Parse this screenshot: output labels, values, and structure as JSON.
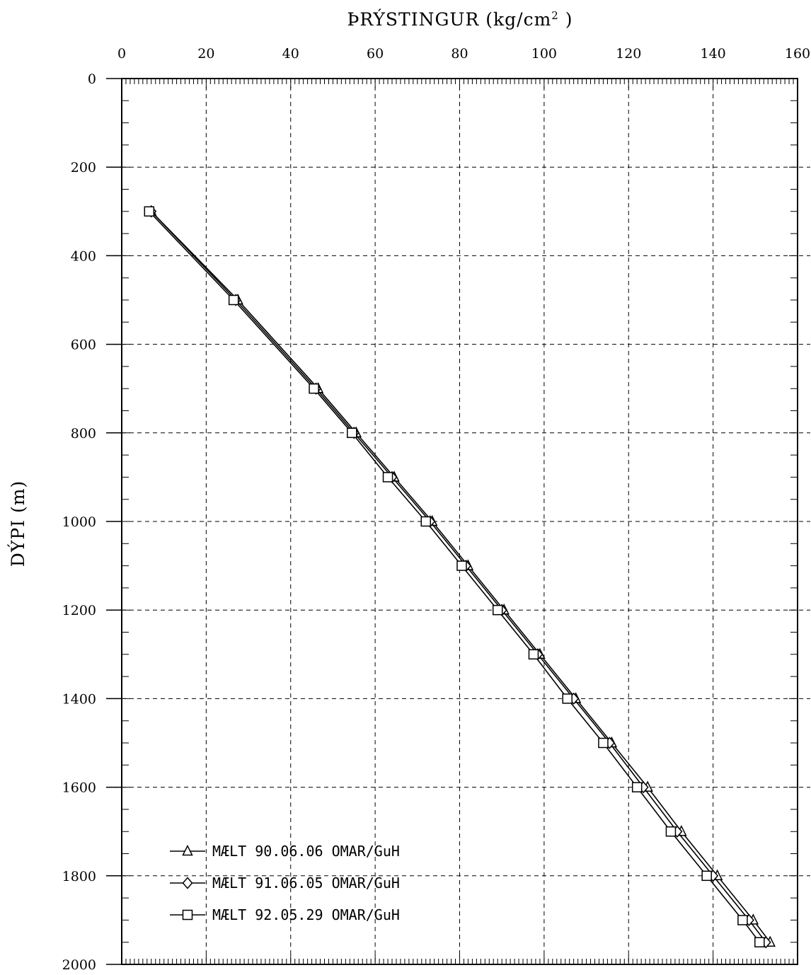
{
  "chart_data": {
    "type": "line",
    "title": "",
    "xlabel": "ÞRÝSTINGUR (kg/cm",
    "xlabel_sup": "2",
    "xlabel_end": " )",
    "ylabel": "DÝPI (m)",
    "xlim": [
      0,
      160
    ],
    "ylim": [
      0,
      2000
    ],
    "y_inverted": true,
    "x_axis_position": "top",
    "x_ticks": [
      0,
      20,
      40,
      60,
      80,
      100,
      120,
      140,
      160
    ],
    "y_ticks": [
      0,
      200,
      400,
      600,
      800,
      1000,
      1200,
      1400,
      1600,
      1800,
      2000
    ],
    "grid": true,
    "legend_position": "bottom-left",
    "series": [
      {
        "name": "MÆLT 90.06.06 OMAR/GuH",
        "marker": "triangle",
        "points": [
          [
            7,
            300
          ],
          [
            27.5,
            500
          ],
          [
            46.5,
            700
          ],
          [
            55.5,
            800
          ],
          [
            64.5,
            900
          ],
          [
            73.5,
            1000
          ],
          [
            82,
            1100
          ],
          [
            90.5,
            1200
          ],
          [
            99,
            1300
          ],
          [
            107.5,
            1400
          ],
          [
            116,
            1500
          ],
          [
            124.5,
            1600
          ],
          [
            132.5,
            1700
          ],
          [
            141,
            1800
          ],
          [
            149.5,
            1900
          ],
          [
            153.5,
            1950
          ]
        ]
      },
      {
        "name": "MÆLT 91.06.05 OMAR/GuH",
        "marker": "diamond",
        "points": [
          [
            7,
            300
          ],
          [
            27,
            500
          ],
          [
            46,
            700
          ],
          [
            55,
            800
          ],
          [
            64,
            900
          ],
          [
            73,
            1000
          ],
          [
            81.5,
            1100
          ],
          [
            90,
            1200
          ],
          [
            98.5,
            1300
          ],
          [
            107,
            1400
          ],
          [
            115.5,
            1500
          ],
          [
            123.5,
            1600
          ],
          [
            131.5,
            1700
          ],
          [
            140,
            1800
          ],
          [
            148.5,
            1900
          ],
          [
            152.5,
            1950
          ]
        ]
      },
      {
        "name": "MÆLT 92.05.29 OMAR/GuH",
        "marker": "square",
        "points": [
          [
            6.5,
            300
          ],
          [
            26.5,
            500
          ],
          [
            45.5,
            700
          ],
          [
            54.5,
            800
          ],
          [
            63,
            900
          ],
          [
            72,
            1000
          ],
          [
            80.5,
            1100
          ],
          [
            89,
            1200
          ],
          [
            97.5,
            1300
          ],
          [
            105.5,
            1400
          ],
          [
            114,
            1500
          ],
          [
            122,
            1600
          ],
          [
            130,
            1700
          ],
          [
            138.5,
            1800
          ],
          [
            147,
            1900
          ],
          [
            151,
            1950
          ]
        ]
      }
    ]
  }
}
